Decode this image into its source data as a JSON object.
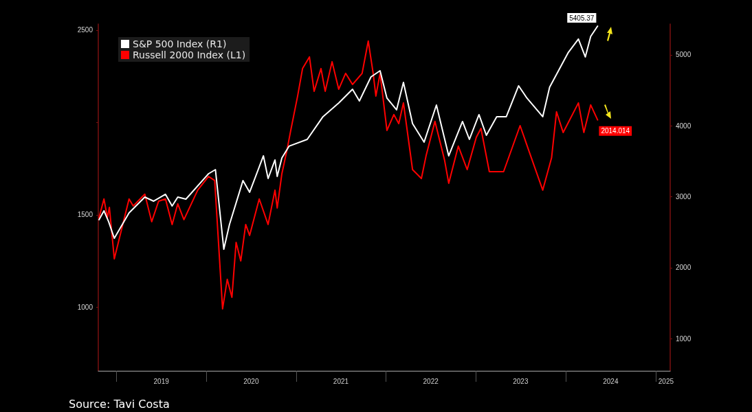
{
  "chart_data": {
    "type": "line",
    "legend": "top left",
    "grid": false,
    "marker": "none",
    "line_style": "solid",
    "xlim": [
      "2018-10-20",
      "2025-03-01"
    ],
    "xticks": [
      {
        "value": "2019-01-01",
        "label": null
      },
      {
        "value": "2019-07-03",
        "label": "2019"
      },
      {
        "value": "2020-01-01",
        "label": null
      },
      {
        "value": "2020-07-02",
        "label": "2020"
      },
      {
        "value": "2021-01-01",
        "label": null
      },
      {
        "value": "2021-07-02",
        "label": "2021"
      },
      {
        "value": "2022-01-01",
        "label": null
      },
      {
        "value": "2022-07-02",
        "label": "2022"
      },
      {
        "value": "2023-01-01",
        "label": null
      },
      {
        "value": "2023-07-02",
        "label": "2023"
      },
      {
        "value": "2024-01-01",
        "label": null
      },
      {
        "value": "2024-07-02",
        "label": "2024"
      },
      {
        "value": "2025-01-01",
        "label": null
      },
      {
        "value": "2025-02-12",
        "label": "2025"
      }
    ],
    "ylim": [
      656,
      2533
    ],
    "yticks": [
      1000,
      1500,
      {
        "value": 2000,
        "label": null
      },
      2500
    ],
    "y2lim": [
      547,
      5435
    ],
    "y2ticks": [
      1000,
      2000,
      3000,
      4000,
      5000
    ],
    "annotations": [
      "Source: Tavi Costa"
    ],
    "series": [
      {
        "name": "S&P 500 Index (R1)",
        "color": "#ffffff",
        "axis": "y2",
        "x": [
          "2018-10-23",
          "2018-11-12",
          "2018-12-01",
          "2018-12-24",
          "2019-02-22",
          "2019-04-27",
          "2019-06-02",
          "2019-07-20",
          "2019-08-16",
          "2019-09-08",
          "2019-10-11",
          "2020-01-11",
          "2020-02-08",
          "2020-03-13",
          "2020-04-05",
          "2020-05-30",
          "2020-06-26",
          "2020-08-21",
          "2020-09-09",
          "2020-10-07",
          "2020-10-16",
          "2020-11-04",
          "2020-12-03",
          "2021-02-15",
          "2021-04-20",
          "2021-06-23",
          "2021-08-18",
          "2021-09-15",
          "2021-11-01",
          "2021-12-08",
          "2022-01-05",
          "2022-02-13",
          "2022-03-13",
          "2022-04-19",
          "2022-06-05",
          "2022-07-25",
          "2022-09-13",
          "2022-11-08",
          "2022-12-06",
          "2023-01-14",
          "2023-02-13",
          "2023-03-27",
          "2023-05-05",
          "2023-06-24",
          "2023-07-28",
          "2023-09-30",
          "2023-10-28",
          "2023-12-03",
          "2024-01-11",
          "2024-02-22",
          "2024-03-21",
          "2024-04-12",
          "2024-05-10"
        ],
        "values": [
          2677,
          2803,
          2648,
          2415,
          2774,
          2996,
          2938,
          3035,
          2870,
          2996,
          2967,
          3325,
          3383,
          2261,
          2609,
          3229,
          3064,
          3577,
          3258,
          3519,
          3287,
          3548,
          3713,
          3809,
          4129,
          4322,
          4516,
          4351,
          4690,
          4777,
          4390,
          4226,
          4613,
          4032,
          3771,
          4293,
          3577,
          4061,
          3809,
          4158,
          3867,
          4129,
          4129,
          4564,
          4390,
          4129,
          4545,
          4777,
          5029,
          5223,
          4971,
          5261,
          5405.37
        ],
        "value_labels": [
          null,
          null,
          null,
          null,
          null,
          null,
          null,
          null,
          null,
          null,
          null,
          null,
          null,
          null,
          null,
          null,
          null,
          null,
          null,
          null,
          null,
          null,
          null,
          null,
          null,
          null,
          null,
          null,
          null,
          null,
          null,
          null,
          null,
          null,
          null,
          null,
          null,
          null,
          null,
          null,
          null,
          null,
          null,
          null,
          null,
          null,
          null,
          null,
          null,
          null,
          null,
          null,
          "5405.37"
        ]
      },
      {
        "name": "Russell 2000 Index (L1)",
        "color": "#ff0000",
        "x": [
          "2018-10-23",
          "2018-11-12",
          "2018-11-26",
          "2018-12-04",
          "2018-12-24",
          "2019-02-22",
          "2019-03-11",
          "2019-04-27",
          "2019-05-25",
          "2019-06-22",
          "2019-07-20",
          "2019-08-16",
          "2019-09-08",
          "2019-10-03",
          "2019-11-28",
          "2020-01-11",
          "2020-02-05",
          "2020-03-08",
          "2020-03-27",
          "2020-04-15",
          "2020-05-02",
          "2020-05-21",
          "2020-06-10",
          "2020-06-26",
          "2020-08-04",
          "2020-09-09",
          "2020-10-07",
          "2020-10-16",
          "2020-11-04",
          "2020-11-24",
          "2020-12-10",
          "2021-01-07",
          "2021-01-27",
          "2021-02-24",
          "2021-03-15",
          "2021-04-12",
          "2021-04-29",
          "2021-05-27",
          "2021-06-23",
          "2021-07-21",
          "2021-08-18",
          "2021-09-26",
          "2021-10-21",
          "2021-11-10",
          "2021-11-21",
          "2021-12-08",
          "2022-01-05",
          "2022-02-02",
          "2022-02-22",
          "2022-03-13",
          "2022-04-19",
          "2022-05-25",
          "2022-06-13",
          "2022-07-19",
          "2022-08-27",
          "2022-09-13",
          "2022-10-22",
          "2022-11-27",
          "2023-01-03",
          "2023-01-22",
          "2023-02-25",
          "2023-04-24",
          "2023-06-30",
          "2023-08-05",
          "2023-09-30",
          "2023-11-05",
          "2023-11-25",
          "2023-12-22",
          "2024-02-22",
          "2024-03-15",
          "2024-04-12",
          "2024-05-10"
        ],
        "values": [
          1485,
          1586,
          1485,
          1541,
          1262,
          1586,
          1548,
          1612,
          1463,
          1574,
          1586,
          1448,
          1560,
          1474,
          1634,
          1708,
          1686,
          991,
          1151,
          1054,
          1351,
          1251,
          1448,
          1389,
          1586,
          1448,
          1634,
          1537,
          1723,
          1846,
          1957,
          2143,
          2292,
          2355,
          2169,
          2292,
          2169,
          2329,
          2180,
          2266,
          2206,
          2266,
          2441,
          2266,
          2143,
          2266,
          1957,
          2043,
          1994,
          2106,
          1745,
          1697,
          1820,
          2006,
          1797,
          1671,
          1872,
          1745,
          1920,
          1968,
          1734,
          1734,
          1983,
          1846,
          1634,
          1809,
          2058,
          1946,
          2106,
          1946,
          2095,
          2014.014
        ],
        "value_labels": [
          null,
          null,
          null,
          null,
          null,
          null,
          null,
          null,
          null,
          null,
          null,
          null,
          null,
          null,
          null,
          null,
          null,
          null,
          null,
          null,
          null,
          null,
          null,
          null,
          null,
          null,
          null,
          null,
          null,
          null,
          null,
          null,
          null,
          null,
          null,
          null,
          null,
          null,
          null,
          null,
          null,
          null,
          null,
          null,
          null,
          null,
          null,
          null,
          null,
          null,
          null,
          null,
          null,
          null,
          null,
          null,
          null,
          null,
          null,
          null,
          null,
          null,
          null,
          null,
          null,
          null,
          null,
          null,
          null,
          null,
          null,
          "2014.014"
        ]
      }
    ]
  }
}
